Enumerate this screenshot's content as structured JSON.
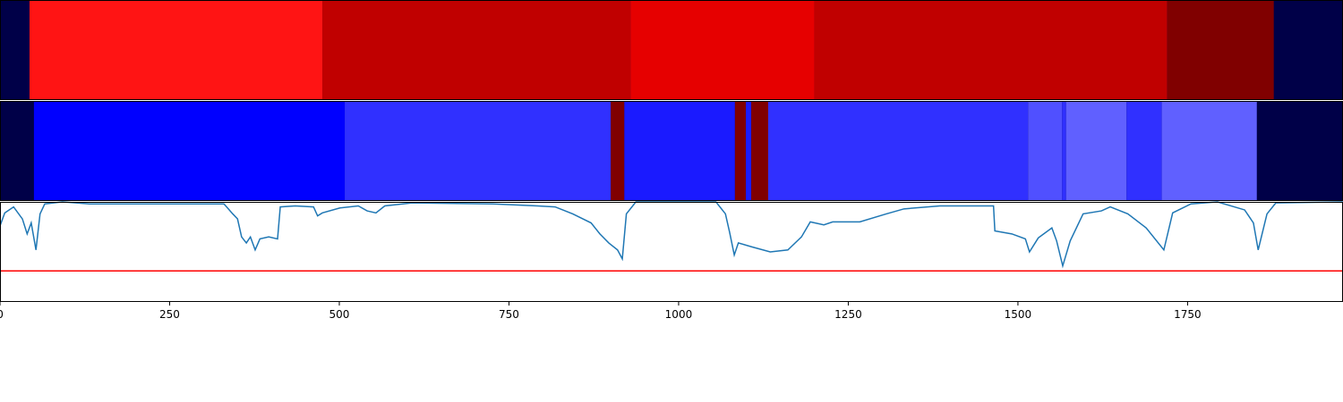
{
  "chart_data": [
    {
      "type": "segments",
      "xlim": [
        0,
        1979
      ],
      "background": "#000048",
      "segments": [
        {
          "start": 43.5,
          "end": 475,
          "color": "#ff1414"
        },
        {
          "start": 475,
          "end": 929,
          "color": "#c00000"
        },
        {
          "start": 929,
          "end": 1200,
          "color": "#e60000"
        },
        {
          "start": 1200,
          "end": 1720,
          "color": "#c00000"
        },
        {
          "start": 1720,
          "end": 1877,
          "color": "#800000"
        }
      ]
    },
    {
      "type": "segments",
      "xlim": [
        0,
        1979
      ],
      "background": "#000048",
      "segments": [
        {
          "start": 50,
          "end": 508,
          "color": "#0000ff"
        },
        {
          "start": 508,
          "end": 900,
          "color": "#3030ff"
        },
        {
          "start": 900,
          "end": 920,
          "color": "#800000"
        },
        {
          "start": 920,
          "end": 1083,
          "color": "#1a1aff"
        },
        {
          "start": 1083,
          "end": 1099,
          "color": "#800000"
        },
        {
          "start": 1099,
          "end": 1107,
          "color": "#1a1aff"
        },
        {
          "start": 1107,
          "end": 1132,
          "color": "#800000"
        },
        {
          "start": 1132,
          "end": 1515,
          "color": "#3030ff"
        },
        {
          "start": 1515,
          "end": 1565,
          "color": "#5050ff"
        },
        {
          "start": 1565,
          "end": 1571,
          "color": "#3030ff"
        },
        {
          "start": 1571,
          "end": 1660,
          "color": "#6060ff"
        },
        {
          "start": 1660,
          "end": 1712,
          "color": "#3030ff"
        },
        {
          "start": 1712,
          "end": 1852,
          "color": "#6060ff"
        }
      ]
    },
    {
      "type": "line",
      "xlim": [
        0,
        1979
      ],
      "ylim": [
        0,
        1
      ],
      "xticks": [
        0,
        250,
        500,
        750,
        1000,
        1250,
        1500,
        1750
      ],
      "threshold": {
        "value": 0.31,
        "color": "#ff0000"
      },
      "series": [
        {
          "color": "#1f77b4",
          "x": [
            0,
            7,
            20,
            33,
            40,
            46,
            53,
            59,
            66,
            92,
            132,
            330,
            343,
            350,
            356,
            363,
            369,
            376,
            383,
            396,
            409,
            413,
            435,
            462,
            468,
            475,
            501,
            528,
            541,
            554,
            567,
            607,
            726,
            792,
            818,
            844,
            871,
            884,
            897,
            910,
            917,
            923,
            937,
            1055,
            1069,
            1075,
            1082,
            1088,
            1108,
            1135,
            1161,
            1181,
            1194,
            1214,
            1227,
            1267,
            1306,
            1332,
            1385,
            1464,
            1466,
            1491,
            1511,
            1517,
            1530,
            1550,
            1557,
            1566,
            1577,
            1596,
            1623,
            1636,
            1662,
            1689,
            1715,
            1728,
            1755,
            1794,
            1834,
            1847,
            1854,
            1867,
            1880,
            1979
          ],
          "values": [
            0.76,
            0.89,
            0.95,
            0.83,
            0.68,
            0.79,
            0.52,
            0.88,
            0.98,
            1.0,
            0.98,
            0.98,
            0.88,
            0.83,
            0.65,
            0.59,
            0.65,
            0.52,
            0.63,
            0.65,
            0.63,
            0.95,
            0.96,
            0.95,
            0.86,
            0.89,
            0.94,
            0.96,
            0.91,
            0.89,
            0.96,
            0.99,
            0.98,
            0.96,
            0.95,
            0.88,
            0.79,
            0.68,
            0.59,
            0.52,
            0.43,
            0.88,
            1.0,
            1.0,
            0.88,
            0.7,
            0.47,
            0.59,
            0.55,
            0.5,
            0.52,
            0.65,
            0.8,
            0.77,
            0.8,
            0.8,
            0.88,
            0.93,
            0.96,
            0.96,
            0.71,
            0.68,
            0.63,
            0.5,
            0.64,
            0.74,
            0.61,
            0.36,
            0.61,
            0.88,
            0.91,
            0.95,
            0.88,
            0.74,
            0.52,
            0.89,
            0.98,
            1.0,
            0.92,
            0.79,
            0.52,
            0.88,
            0.99,
            1.0
          ]
        }
      ]
    }
  ]
}
